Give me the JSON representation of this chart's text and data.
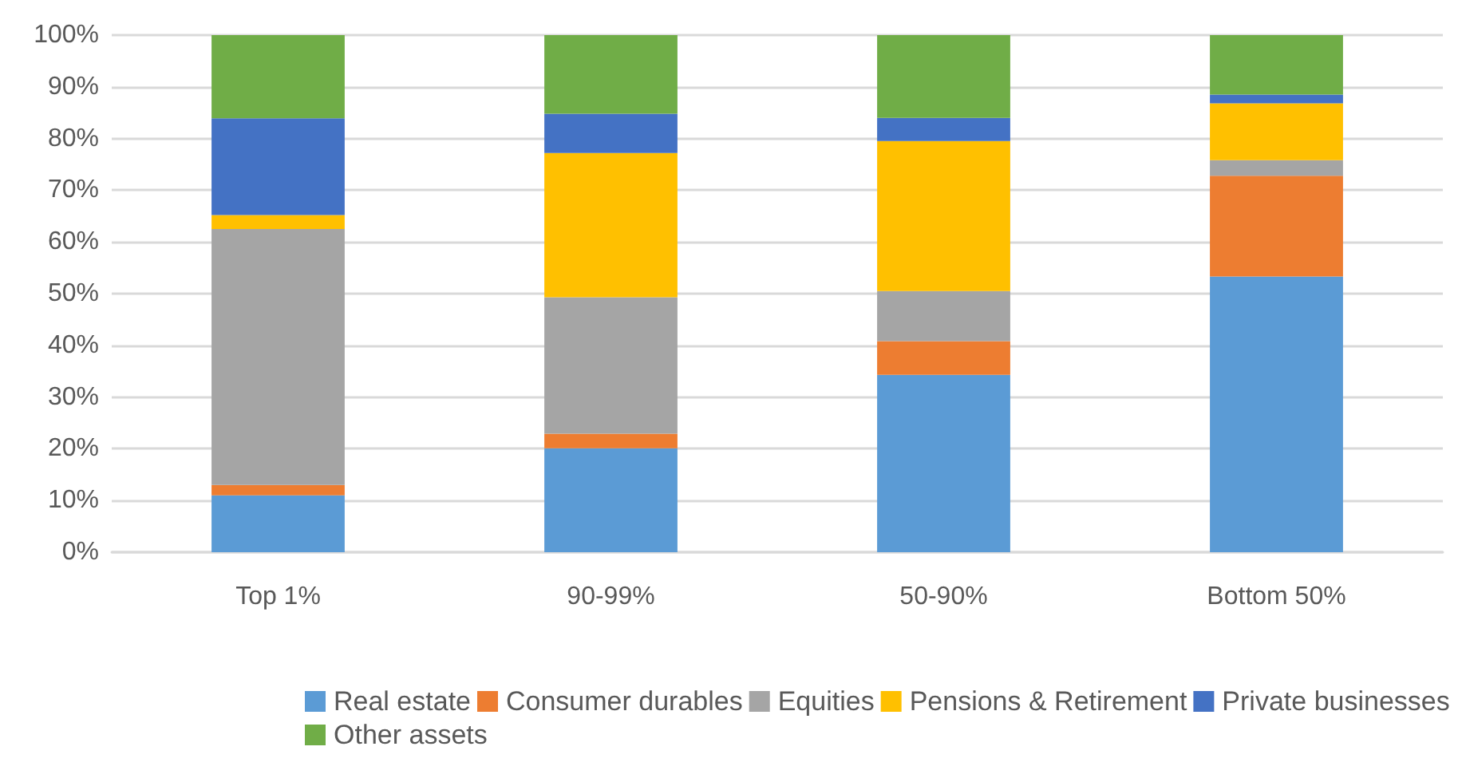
{
  "chart_data": {
    "type": "bar",
    "stacked": true,
    "categories": [
      "Top 1%",
      "90-99%",
      "50-90%",
      "Bottom 50%"
    ],
    "series": [
      {
        "name": "Real estate",
        "color": "#5b9bd5",
        "values": [
          11,
          20.1,
          34.3,
          53.3
        ]
      },
      {
        "name": "Consumer durables",
        "color": "#ed7d31",
        "values": [
          2,
          2.8,
          6.5,
          19.5
        ]
      },
      {
        "name": "Equities",
        "color": "#a5a5a5",
        "values": [
          49.5,
          26.4,
          9.7,
          3
        ]
      },
      {
        "name": "Pensions & Retirement",
        "color": "#ffc000",
        "values": [
          2.7,
          27.9,
          29,
          11
        ]
      },
      {
        "name": "Private businesses",
        "color": "#4472c4",
        "values": [
          18.7,
          7.6,
          4.5,
          1.7
        ]
      },
      {
        "name": "Other assets",
        "color": "#70ad47",
        "values": [
          16.1,
          15.2,
          16,
          11.5
        ]
      }
    ],
    "ylim": [
      0,
      100
    ],
    "yticks": [
      {
        "value": 0,
        "label": "0%"
      },
      {
        "value": 10,
        "label": "10%"
      },
      {
        "value": 20,
        "label": "20%"
      },
      {
        "value": 30,
        "label": "30%"
      },
      {
        "value": 40,
        "label": "40%"
      },
      {
        "value": 50,
        "label": "50%"
      },
      {
        "value": 60,
        "label": "60%"
      },
      {
        "value": 70,
        "label": "70%"
      },
      {
        "value": 80,
        "label": "80%"
      },
      {
        "value": 90,
        "label": "90%"
      },
      {
        "value": 100,
        "label": "100%"
      }
    ],
    "grid": "y",
    "legend": "bottom"
  }
}
